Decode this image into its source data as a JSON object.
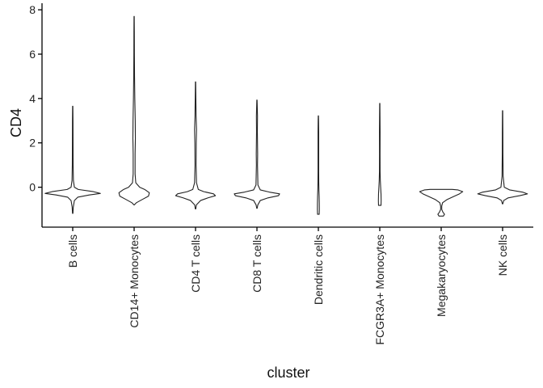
{
  "chart_data": {
    "type": "violin",
    "title": "",
    "xlabel": "cluster",
    "ylabel": "CD4",
    "ylim": [
      -1.8,
      8.15
    ],
    "yticks": [
      0,
      2,
      4,
      6,
      8
    ],
    "grid": false,
    "legend": "none",
    "colors": {
      "stroke": "#222222",
      "fill": "#ffffff",
      "axis": "#000000"
    },
    "categories": [
      "B cells",
      "CD14+ Monocytes",
      "CD4 T cells",
      "CD8 T cells",
      "Dendritic cells",
      "FCGR3A+ Monocytes",
      "Megakaryocytes",
      "NK cells"
    ],
    "violins": [
      {
        "name": "B cells",
        "min": -1.18,
        "max": 3.65,
        "profile": [
          [
            -1.18,
            0.008
          ],
          [
            -0.9,
            0.02
          ],
          [
            -0.6,
            0.06
          ],
          [
            -0.45,
            0.18
          ],
          [
            -0.35,
            0.6
          ],
          [
            -0.28,
            1.0
          ],
          [
            -0.2,
            0.75
          ],
          [
            -0.1,
            0.2
          ],
          [
            0.0,
            0.06
          ],
          [
            0.3,
            0.025
          ],
          [
            1.0,
            0.015
          ],
          [
            2.0,
            0.012
          ],
          [
            3.0,
            0.01
          ],
          [
            3.65,
            0.005
          ]
        ]
      },
      {
        "name": "CD14+ Monocytes",
        "min": -0.8,
        "max": 7.7,
        "profile": [
          [
            -0.8,
            0.005
          ],
          [
            -0.7,
            0.08
          ],
          [
            -0.55,
            0.3
          ],
          [
            -0.4,
            0.52
          ],
          [
            -0.25,
            0.55
          ],
          [
            -0.1,
            0.38
          ],
          [
            0.0,
            0.2
          ],
          [
            0.2,
            0.06
          ],
          [
            0.6,
            0.035
          ],
          [
            1.5,
            0.035
          ],
          [
            2.2,
            0.045
          ],
          [
            3.0,
            0.04
          ],
          [
            4.0,
            0.025
          ],
          [
            5.0,
            0.015
          ],
          [
            6.0,
            0.01
          ],
          [
            7.0,
            0.008
          ],
          [
            7.7,
            0.004
          ]
        ]
      },
      {
        "name": "CD4 T cells",
        "min": -0.98,
        "max": 4.75,
        "profile": [
          [
            -0.98,
            0.008
          ],
          [
            -0.8,
            0.03
          ],
          [
            -0.6,
            0.18
          ],
          [
            -0.48,
            0.45
          ],
          [
            -0.38,
            0.72
          ],
          [
            -0.3,
            0.65
          ],
          [
            -0.2,
            0.3
          ],
          [
            -0.1,
            0.1
          ],
          [
            0.2,
            0.035
          ],
          [
            1.0,
            0.02
          ],
          [
            2.0,
            0.025
          ],
          [
            2.6,
            0.035
          ],
          [
            3.2,
            0.02
          ],
          [
            4.0,
            0.012
          ],
          [
            4.75,
            0.005
          ]
        ]
      },
      {
        "name": "CD8 T cells",
        "min": -0.95,
        "max": 3.93,
        "profile": [
          [
            -0.95,
            0.008
          ],
          [
            -0.8,
            0.03
          ],
          [
            -0.6,
            0.12
          ],
          [
            -0.48,
            0.4
          ],
          [
            -0.38,
            0.78
          ],
          [
            -0.3,
            0.82
          ],
          [
            -0.22,
            0.45
          ],
          [
            -0.12,
            0.12
          ],
          [
            0.1,
            0.035
          ],
          [
            1.0,
            0.02
          ],
          [
            1.5,
            0.025
          ],
          [
            2.5,
            0.015
          ],
          [
            3.2,
            0.02
          ],
          [
            3.93,
            0.005
          ]
        ]
      },
      {
        "name": "Dendritic cells",
        "min": -1.22,
        "max": 3.22,
        "profile": [
          [
            -1.22,
            0.03
          ],
          [
            -1.0,
            0.035
          ],
          [
            -0.7,
            0.033
          ],
          [
            -0.4,
            0.028
          ],
          [
            -0.1,
            0.02
          ],
          [
            0.2,
            0.015
          ],
          [
            0.7,
            0.012
          ],
          [
            1.5,
            0.012
          ],
          [
            2.5,
            0.012
          ],
          [
            3.0,
            0.008
          ],
          [
            3.22,
            0.004
          ]
        ]
      },
      {
        "name": "FCGR3A+ Monocytes",
        "min": -0.82,
        "max": 3.78,
        "profile": [
          [
            -0.82,
            0.045
          ],
          [
            -0.6,
            0.05
          ],
          [
            -0.3,
            0.045
          ],
          [
            0.0,
            0.032
          ],
          [
            0.3,
            0.02
          ],
          [
            0.7,
            0.012
          ],
          [
            1.5,
            0.01
          ],
          [
            2.5,
            0.012
          ],
          [
            3.2,
            0.008
          ],
          [
            3.78,
            0.004
          ]
        ]
      },
      {
        "name": "Megakaryocytes",
        "min": -1.3,
        "max": -0.1,
        "profile": [
          [
            -1.3,
            0.08
          ],
          [
            -1.22,
            0.12
          ],
          [
            -1.12,
            0.06
          ],
          [
            -1.0,
            0.02
          ],
          [
            -0.85,
            0.02
          ],
          [
            -0.7,
            0.05
          ],
          [
            -0.55,
            0.22
          ],
          [
            -0.42,
            0.45
          ],
          [
            -0.3,
            0.66
          ],
          [
            -0.2,
            0.78
          ],
          [
            -0.12,
            0.6
          ],
          [
            -0.1,
            0.4
          ]
        ]
      },
      {
        "name": "NK cells",
        "min": -0.75,
        "max": 3.45,
        "profile": [
          [
            -0.75,
            0.008
          ],
          [
            -0.6,
            0.04
          ],
          [
            -0.48,
            0.2
          ],
          [
            -0.38,
            0.62
          ],
          [
            -0.3,
            0.9
          ],
          [
            -0.22,
            0.72
          ],
          [
            -0.12,
            0.25
          ],
          [
            0.0,
            0.06
          ],
          [
            0.5,
            0.02
          ],
          [
            1.5,
            0.012
          ],
          [
            2.5,
            0.01
          ],
          [
            3.45,
            0.005
          ]
        ]
      }
    ]
  }
}
